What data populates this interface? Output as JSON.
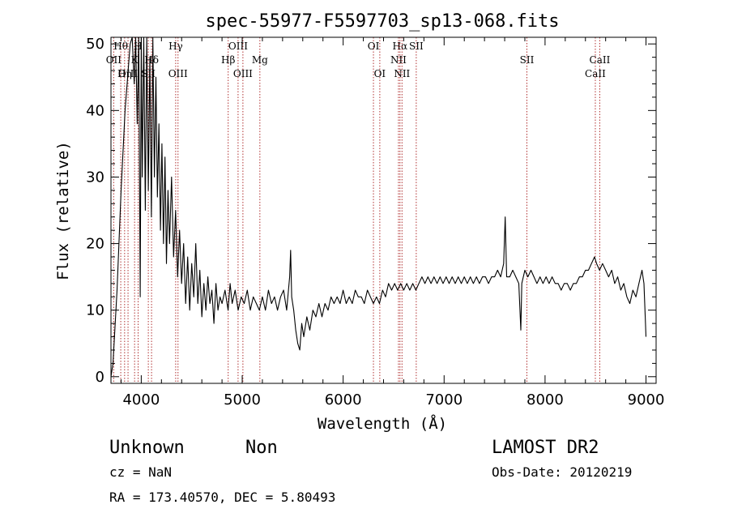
{
  "chart_data": {
    "type": "line",
    "title": "spec-55977-F5597703_sp13-068.fits",
    "xlabel": "Wavelength (Å)",
    "ylabel": "Flux (relative)",
    "xlim": [
      3700,
      9100
    ],
    "ylim": [
      -1,
      51
    ],
    "x_ticks": [
      4000,
      5000,
      6000,
      7000,
      8000,
      9000
    ],
    "y_ticks": [
      0,
      10,
      20,
      30,
      40,
      50
    ],
    "grid": false,
    "series": [
      {
        "points": [
          [
            3700,
            0
          ],
          [
            3720,
            2
          ],
          [
            3760,
            13
          ],
          [
            3800,
            28
          ],
          [
            3840,
            40
          ],
          [
            3870,
            46
          ],
          [
            3890,
            50
          ],
          [
            3910,
            51
          ],
          [
            3930,
            44
          ],
          [
            3945,
            51
          ],
          [
            3960,
            38
          ],
          [
            3975,
            51
          ],
          [
            3990,
            12
          ],
          [
            4000,
            51
          ],
          [
            4010,
            30
          ],
          [
            4025,
            51
          ],
          [
            4040,
            25
          ],
          [
            4055,
            51
          ],
          [
            4070,
            28
          ],
          [
            4085,
            48
          ],
          [
            4100,
            24
          ],
          [
            4115,
            51
          ],
          [
            4130,
            30
          ],
          [
            4145,
            45
          ],
          [
            4160,
            27
          ],
          [
            4175,
            38
          ],
          [
            4190,
            22
          ],
          [
            4205,
            35
          ],
          [
            4220,
            20
          ],
          [
            4235,
            33
          ],
          [
            4250,
            17
          ],
          [
            4265,
            28
          ],
          [
            4280,
            20
          ],
          [
            4300,
            30
          ],
          [
            4320,
            18
          ],
          [
            4340,
            25
          ],
          [
            4360,
            15
          ],
          [
            4380,
            22
          ],
          [
            4400,
            14
          ],
          [
            4420,
            20
          ],
          [
            4440,
            11
          ],
          [
            4460,
            18
          ],
          [
            4480,
            10
          ],
          [
            4500,
            17
          ],
          [
            4520,
            12
          ],
          [
            4540,
            20
          ],
          [
            4560,
            11
          ],
          [
            4580,
            16
          ],
          [
            4600,
            9
          ],
          [
            4620,
            14
          ],
          [
            4640,
            10
          ],
          [
            4660,
            15
          ],
          [
            4680,
            11
          ],
          [
            4700,
            13
          ],
          [
            4720,
            8
          ],
          [
            4740,
            14
          ],
          [
            4760,
            10
          ],
          [
            4780,
            12
          ],
          [
            4800,
            11
          ],
          [
            4830,
            13
          ],
          [
            4860,
            10
          ],
          [
            4880,
            14
          ],
          [
            4900,
            11
          ],
          [
            4930,
            13
          ],
          [
            4960,
            10
          ],
          [
            4990,
            12
          ],
          [
            5020,
            11
          ],
          [
            5050,
            13
          ],
          [
            5080,
            10
          ],
          [
            5110,
            12
          ],
          [
            5140,
            11
          ],
          [
            5170,
            10
          ],
          [
            5200,
            12
          ],
          [
            5230,
            10
          ],
          [
            5260,
            13
          ],
          [
            5290,
            11
          ],
          [
            5320,
            12
          ],
          [
            5350,
            10
          ],
          [
            5380,
            12
          ],
          [
            5410,
            13
          ],
          [
            5440,
            10
          ],
          [
            5470,
            15
          ],
          [
            5480,
            19
          ],
          [
            5490,
            12
          ],
          [
            5510,
            10
          ],
          [
            5530,
            7
          ],
          [
            5550,
            5
          ],
          [
            5570,
            4
          ],
          [
            5590,
            8
          ],
          [
            5610,
            6
          ],
          [
            5640,
            9
          ],
          [
            5670,
            7
          ],
          [
            5700,
            10
          ],
          [
            5730,
            9
          ],
          [
            5760,
            11
          ],
          [
            5790,
            9
          ],
          [
            5820,
            11
          ],
          [
            5850,
            10
          ],
          [
            5880,
            12
          ],
          [
            5910,
            11
          ],
          [
            5940,
            12
          ],
          [
            5970,
            11
          ],
          [
            6000,
            13
          ],
          [
            6030,
            11
          ],
          [
            6060,
            12
          ],
          [
            6090,
            11
          ],
          [
            6120,
            13
          ],
          [
            6150,
            12
          ],
          [
            6180,
            12
          ],
          [
            6210,
            11
          ],
          [
            6240,
            13
          ],
          [
            6270,
            12
          ],
          [
            6300,
            11
          ],
          [
            6330,
            12
          ],
          [
            6360,
            11
          ],
          [
            6390,
            13
          ],
          [
            6420,
            12
          ],
          [
            6450,
            14
          ],
          [
            6480,
            13
          ],
          [
            6510,
            14
          ],
          [
            6540,
            13
          ],
          [
            6570,
            14
          ],
          [
            6600,
            13
          ],
          [
            6630,
            14
          ],
          [
            6660,
            13
          ],
          [
            6690,
            14
          ],
          [
            6720,
            13
          ],
          [
            6750,
            14
          ],
          [
            6780,
            15
          ],
          [
            6810,
            14
          ],
          [
            6840,
            15
          ],
          [
            6870,
            14
          ],
          [
            6900,
            15
          ],
          [
            6930,
            14
          ],
          [
            6960,
            15
          ],
          [
            6990,
            14
          ],
          [
            7020,
            15
          ],
          [
            7050,
            14
          ],
          [
            7080,
            15
          ],
          [
            7110,
            14
          ],
          [
            7140,
            15
          ],
          [
            7170,
            14
          ],
          [
            7200,
            15
          ],
          [
            7230,
            14
          ],
          [
            7260,
            15
          ],
          [
            7290,
            14
          ],
          [
            7320,
            15
          ],
          [
            7350,
            14
          ],
          [
            7380,
            15
          ],
          [
            7410,
            15
          ],
          [
            7440,
            14
          ],
          [
            7470,
            15
          ],
          [
            7500,
            15
          ],
          [
            7530,
            16
          ],
          [
            7560,
            15
          ],
          [
            7590,
            17
          ],
          [
            7605,
            24
          ],
          [
            7620,
            15
          ],
          [
            7650,
            15
          ],
          [
            7680,
            16
          ],
          [
            7710,
            15
          ],
          [
            7740,
            14
          ],
          [
            7760,
            7
          ],
          [
            7770,
            14
          ],
          [
            7800,
            16
          ],
          [
            7830,
            15
          ],
          [
            7860,
            16
          ],
          [
            7890,
            15
          ],
          [
            7920,
            14
          ],
          [
            7950,
            15
          ],
          [
            7980,
            14
          ],
          [
            8010,
            15
          ],
          [
            8040,
            14
          ],
          [
            8070,
            15
          ],
          [
            8100,
            14
          ],
          [
            8130,
            14
          ],
          [
            8160,
            13
          ],
          [
            8190,
            14
          ],
          [
            8220,
            14
          ],
          [
            8250,
            13
          ],
          [
            8280,
            14
          ],
          [
            8310,
            14
          ],
          [
            8340,
            15
          ],
          [
            8370,
            15
          ],
          [
            8400,
            16
          ],
          [
            8430,
            16
          ],
          [
            8460,
            17
          ],
          [
            8490,
            18
          ],
          [
            8510,
            17
          ],
          [
            8540,
            16
          ],
          [
            8570,
            17
          ],
          [
            8600,
            16
          ],
          [
            8630,
            15
          ],
          [
            8660,
            16
          ],
          [
            8690,
            14
          ],
          [
            8720,
            15
          ],
          [
            8750,
            13
          ],
          [
            8780,
            14
          ],
          [
            8810,
            12
          ],
          [
            8840,
            11
          ],
          [
            8870,
            13
          ],
          [
            8900,
            12
          ],
          [
            8930,
            14
          ],
          [
            8960,
            16
          ],
          [
            8980,
            14
          ],
          [
            8995,
            8
          ],
          [
            9000,
            6
          ]
        ]
      }
    ],
    "emission_lines": [
      {
        "label": "Hθ",
        "x": 3797,
        "row": 0
      },
      {
        "label": "OII",
        "x": 3727,
        "row": 1
      },
      {
        "label": "OIII",
        "x": 3869,
        "row": 2
      },
      {
        "label": "Hη",
        "x": 3835,
        "row": 2
      },
      {
        "label": "K",
        "x": 3934,
        "row": 1
      },
      {
        "label": "H",
        "x": 3969,
        "row": 0
      },
      {
        "label": "Hδ",
        "x": 4102,
        "row": 1
      },
      {
        "label": "SII",
        "x": 4070,
        "row": 2
      },
      {
        "label": "Hγ",
        "x": 4341,
        "row": 0
      },
      {
        "label": "OIII",
        "x": 4364,
        "row": 2
      },
      {
        "label": "Hβ",
        "x": 4861,
        "row": 1
      },
      {
        "label": "OIII",
        "x": 4959,
        "row": 0
      },
      {
        "label": "OIII",
        "x": 5007,
        "row": 2
      },
      {
        "label": "Mg",
        "x": 5175,
        "row": 1
      },
      {
        "label": "OI",
        "x": 6300,
        "row": 0
      },
      {
        "label": "OI",
        "x": 6363,
        "row": 2
      },
      {
        "label": "Hα",
        "x": 6563,
        "row": 0
      },
      {
        "label": "NII",
        "x": 6548,
        "row": 1
      },
      {
        "label": "NII",
        "x": 6583,
        "row": 2
      },
      {
        "label": "SII",
        "x": 6724,
        "row": 0
      },
      {
        "label": "SII",
        "x": 7820,
        "row": 1
      },
      {
        "label": "CaII",
        "x": 8542,
        "row": 1
      },
      {
        "label": "CaII",
        "x": 8498,
        "row": 2
      }
    ]
  },
  "info": {
    "class_label": "Unknown",
    "subclass_label": "Non",
    "survey": "LAMOST DR2",
    "cz": "cz = NaN",
    "obs_date": "Obs-Date: 20120219",
    "coords": "RA = 173.40570, DEC =   5.80493"
  },
  "colors": {
    "spectrum": "#000000",
    "line_marker": "#b03030",
    "axes": "#000000",
    "background": "#ffffff"
  }
}
